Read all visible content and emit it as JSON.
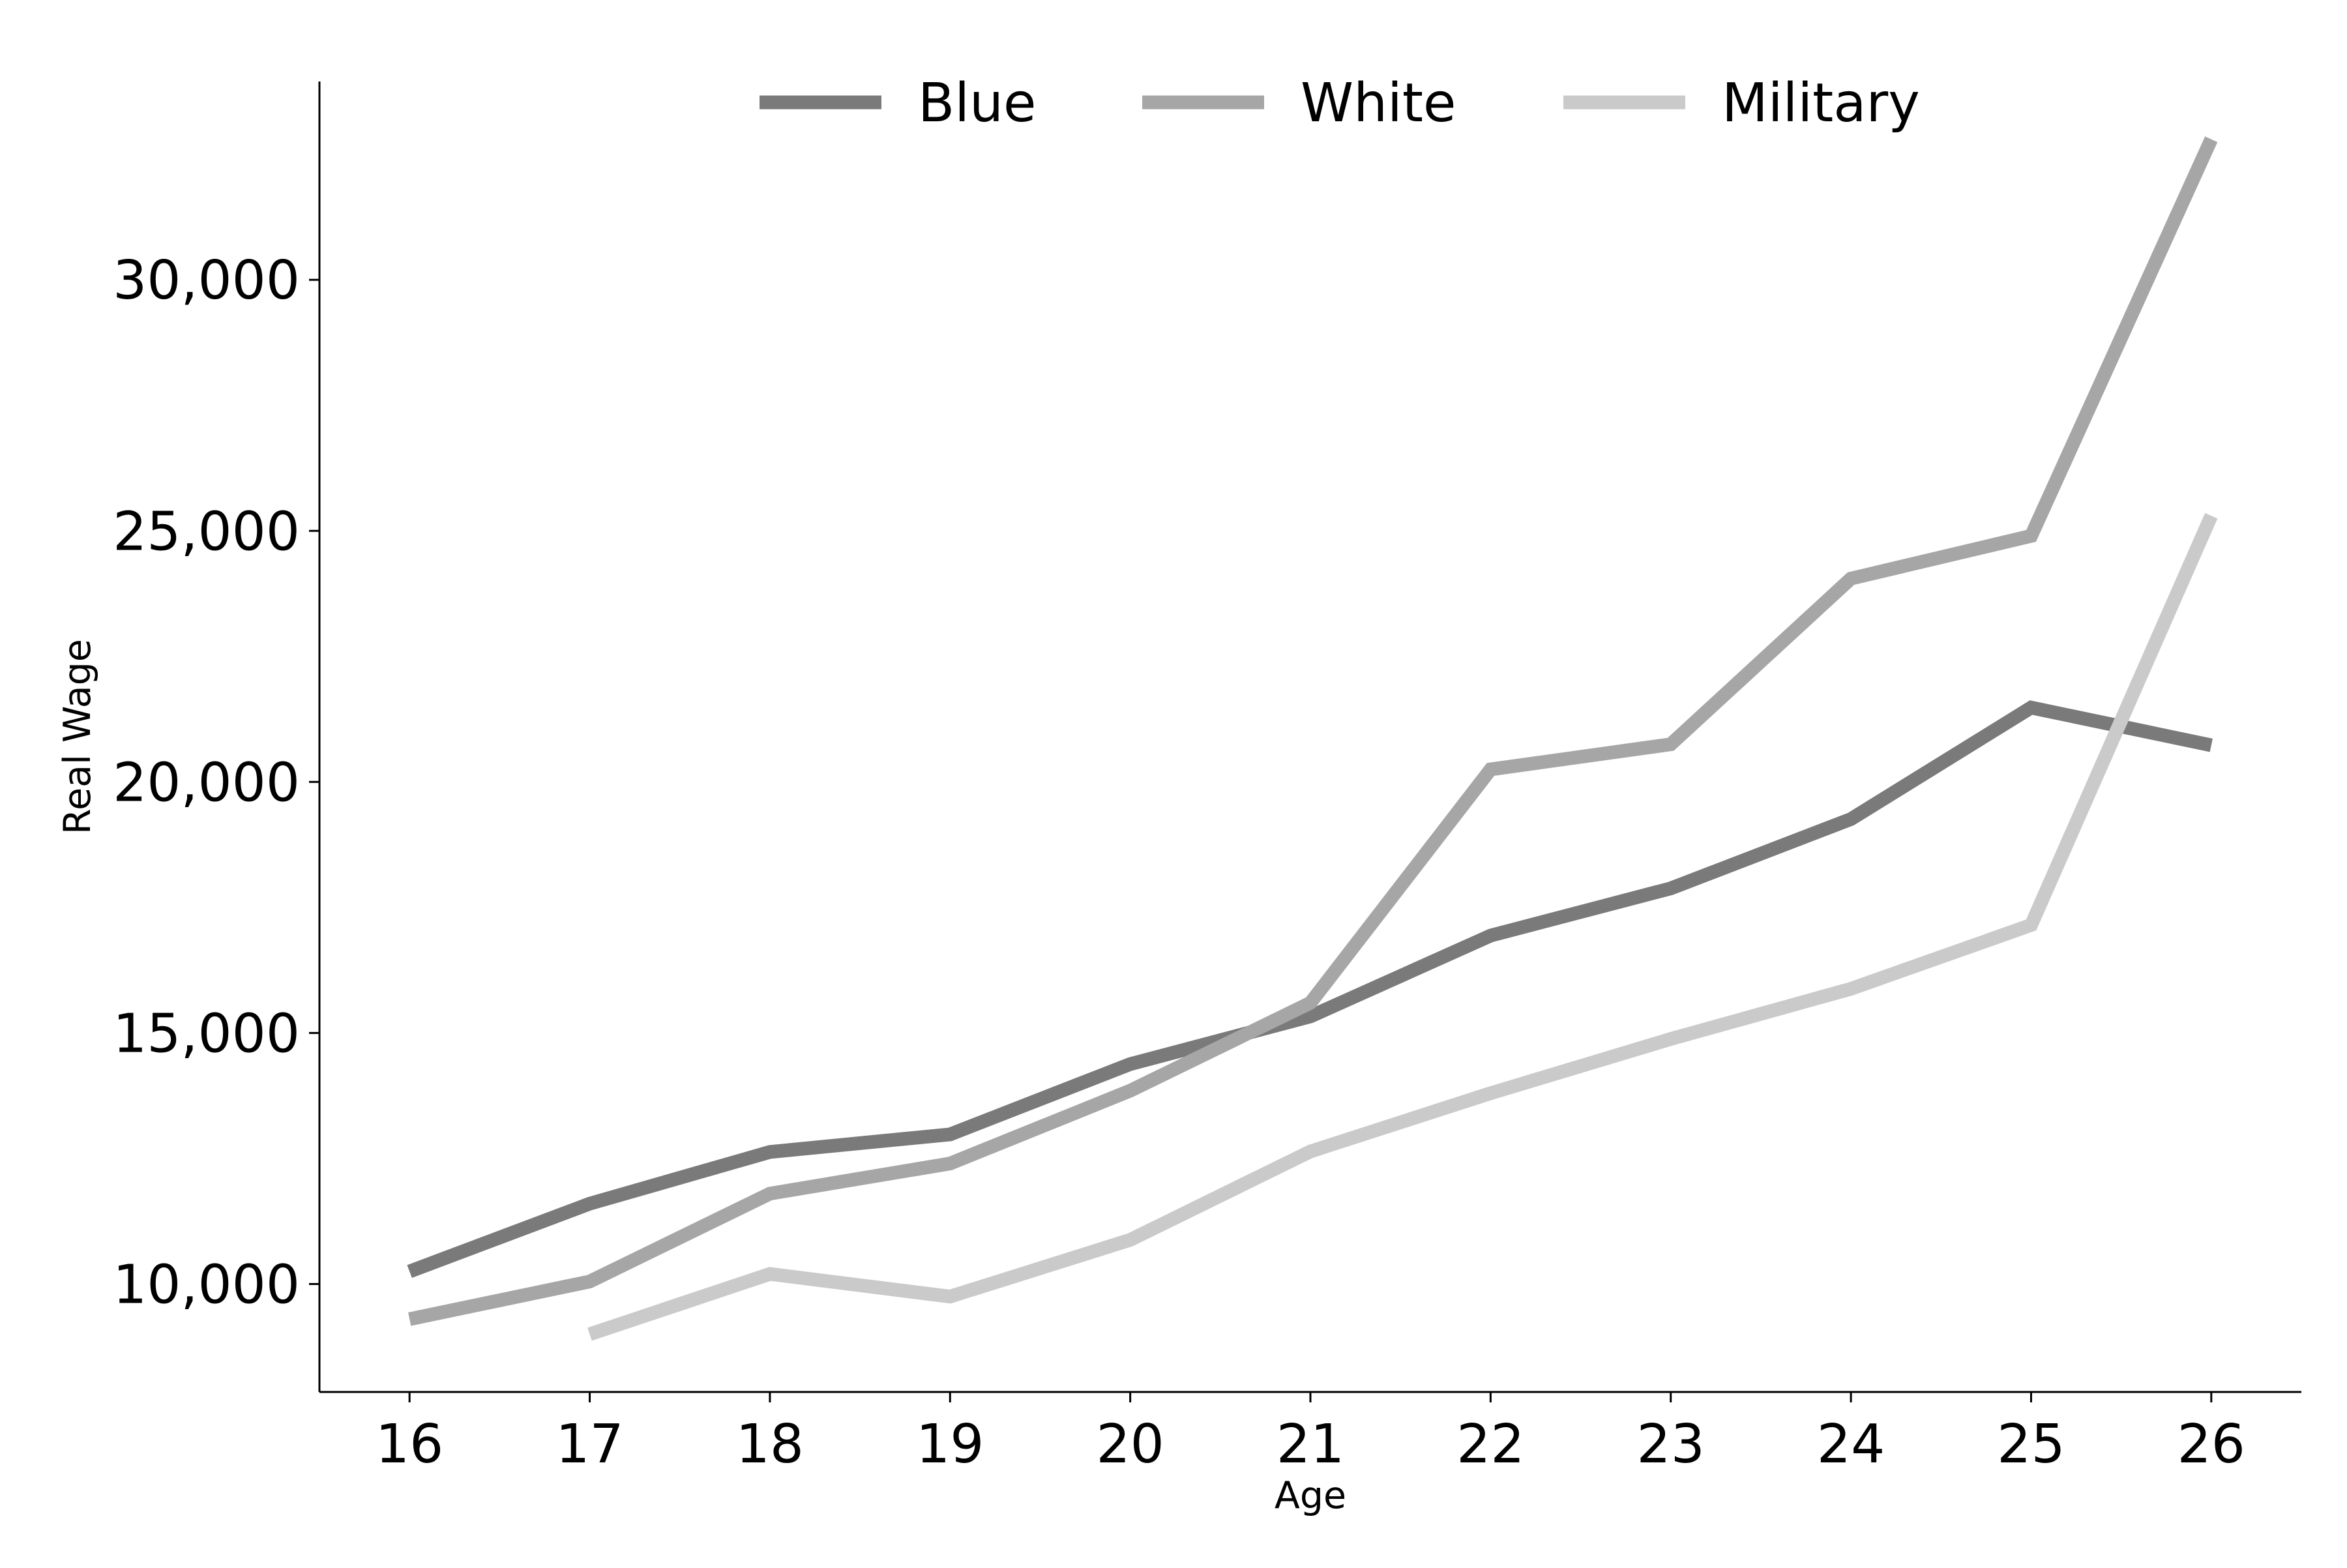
{
  "chart_data": {
    "type": "line",
    "title": "",
    "xlabel": "Age",
    "ylabel": "Real Wage",
    "xlim": [
      15.5,
      26.5
    ],
    "ylim": [
      7850,
      33950
    ],
    "x_ticks": [
      16,
      17,
      18,
      19,
      20,
      21,
      22,
      23,
      24,
      25,
      26
    ],
    "y_ticks": [
      10000,
      15000,
      20000,
      25000,
      30000
    ],
    "y_tick_labels": [
      "10,000",
      "15,000",
      "20,000",
      "25,000",
      "30,000"
    ],
    "grid": false,
    "legend": {
      "placement": "top-center",
      "orientation": "horizontal"
    },
    "series": [
      {
        "name": "Blue",
        "color": "#7a7a7a",
        "x": [
          16,
          17,
          18,
          19,
          20,
          21,
          22,
          23,
          24,
          25,
          26
        ],
        "values": [
          10250,
          11600,
          12630,
          12980,
          14380,
          15330,
          16940,
          17880,
          19260,
          21480,
          20730
        ]
      },
      {
        "name": "White",
        "color": "#a6a6a6",
        "x": [
          16,
          17,
          18,
          19,
          20,
          21,
          22,
          23,
          24,
          25,
          26
        ],
        "values": [
          9300,
          10050,
          11800,
          12400,
          13850,
          15600,
          20250,
          20750,
          24050,
          24900,
          32800
        ]
      },
      {
        "name": "Military",
        "color": "#cacaca",
        "x": [
          17,
          18,
          19,
          20,
          21,
          22,
          23,
          24,
          25,
          26
        ],
        "values": [
          9000,
          10200,
          9750,
          10880,
          12640,
          13800,
          14880,
          15880,
          17150,
          25300
        ]
      }
    ]
  }
}
